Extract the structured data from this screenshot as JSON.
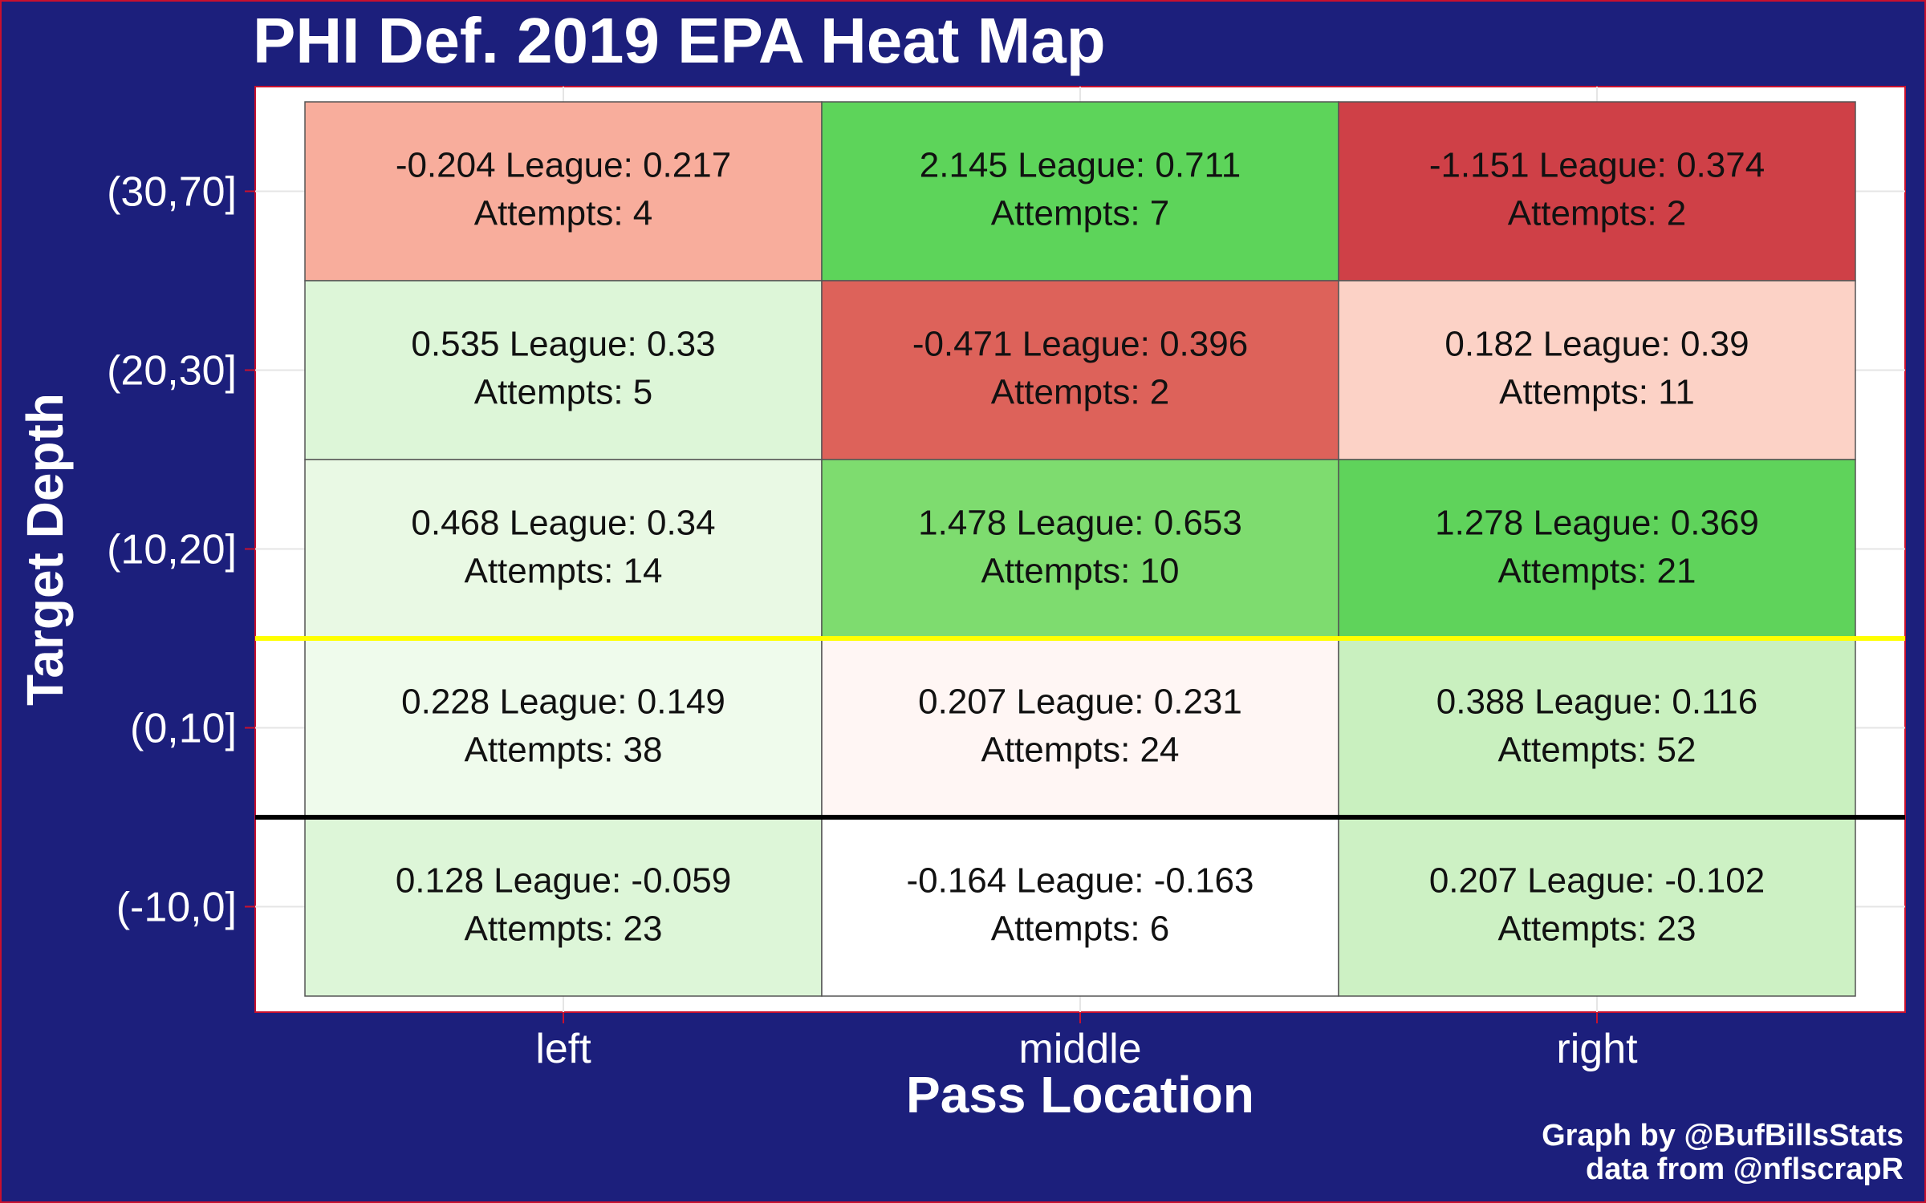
{
  "chart_data": {
    "type": "heatmap",
    "title": "PHI  Def.  2019  EPA Heat Map",
    "xlabel": "Pass Location",
    "ylabel": "Target Depth",
    "x_categories": [
      "left",
      "middle",
      "right"
    ],
    "y_categories": [
      "(30,70]",
      "(20,30]",
      "(10,20]",
      "(0,10]",
      "(-10,0]"
    ],
    "value_label": "League:",
    "attempts_label": "Attempts:",
    "cells": [
      {
        "x": "left",
        "y": "(30,70]",
        "epa": "-0.204",
        "league": "0.217",
        "attempts": "4",
        "color": "#f8ad9c"
      },
      {
        "x": "middle",
        "y": "(30,70]",
        "epa": "2.145",
        "league": "0.711",
        "attempts": "7",
        "color": "#5dd45a"
      },
      {
        "x": "right",
        "y": "(30,70]",
        "epa": "-1.151",
        "league": "0.374",
        "attempts": "2",
        "color": "#cf4047"
      },
      {
        "x": "left",
        "y": "(20,30]",
        "epa": "0.535",
        "league": "0.33",
        "attempts": "5",
        "color": "#ddf6d8"
      },
      {
        "x": "middle",
        "y": "(20,30]",
        "epa": "-0.471",
        "league": "0.396",
        "attempts": "2",
        "color": "#dd625a"
      },
      {
        "x": "right",
        "y": "(20,30]",
        "epa": "0.182",
        "league": "0.39",
        "attempts": "11",
        "color": "#fcd2c6"
      },
      {
        "x": "left",
        "y": "(10,20]",
        "epa": "0.468",
        "league": "0.34",
        "attempts": "14",
        "color": "#e9f9e4"
      },
      {
        "x": "middle",
        "y": "(10,20]",
        "epa": "1.478",
        "league": "0.653",
        "attempts": "10",
        "color": "#7edc6f"
      },
      {
        "x": "right",
        "y": "(10,20]",
        "epa": "1.278",
        "league": "0.369",
        "attempts": "21",
        "color": "#5fd35b"
      },
      {
        "x": "left",
        "y": "(0,10]",
        "epa": "0.228",
        "league": "0.149",
        "attempts": "38",
        "color": "#effbec"
      },
      {
        "x": "middle",
        "y": "(0,10]",
        "epa": "0.207",
        "league": "0.231",
        "attempts": "24",
        "color": "#fff6f4"
      },
      {
        "x": "right",
        "y": "(0,10]",
        "epa": "0.388",
        "league": "0.116",
        "attempts": "52",
        "color": "#c9f0bf"
      },
      {
        "x": "left",
        "y": "(-10,0]",
        "epa": "0.128",
        "league": "-0.059",
        "attempts": "23",
        "color": "#ddf6d8"
      },
      {
        "x": "middle",
        "y": "(-10,0]",
        "epa": "-0.164",
        "league": "-0.163",
        "attempts": "6",
        "color": "#ffffff"
      },
      {
        "x": "right",
        "y": "(-10,0]",
        "epa": "0.207",
        "league": "-0.102",
        "attempts": "23",
        "color": "#cdf1c4"
      }
    ],
    "reference_lines": [
      {
        "between": [
          "(10,20]",
          "(0,10]"
        ],
        "color": "#ffff00"
      },
      {
        "between": [
          "(0,10]",
          "(-10,0]"
        ],
        "color": "#000000"
      }
    ],
    "grid": true,
    "legend": "none"
  },
  "credits": {
    "line1": "Graph by @BufBillsStats",
    "line2": "data from @nflscrapR"
  },
  "colors": {
    "background": "#1c1f7c",
    "frame": "#c8102e",
    "panel": "#ffffff",
    "grid": "#e5e5e5"
  }
}
